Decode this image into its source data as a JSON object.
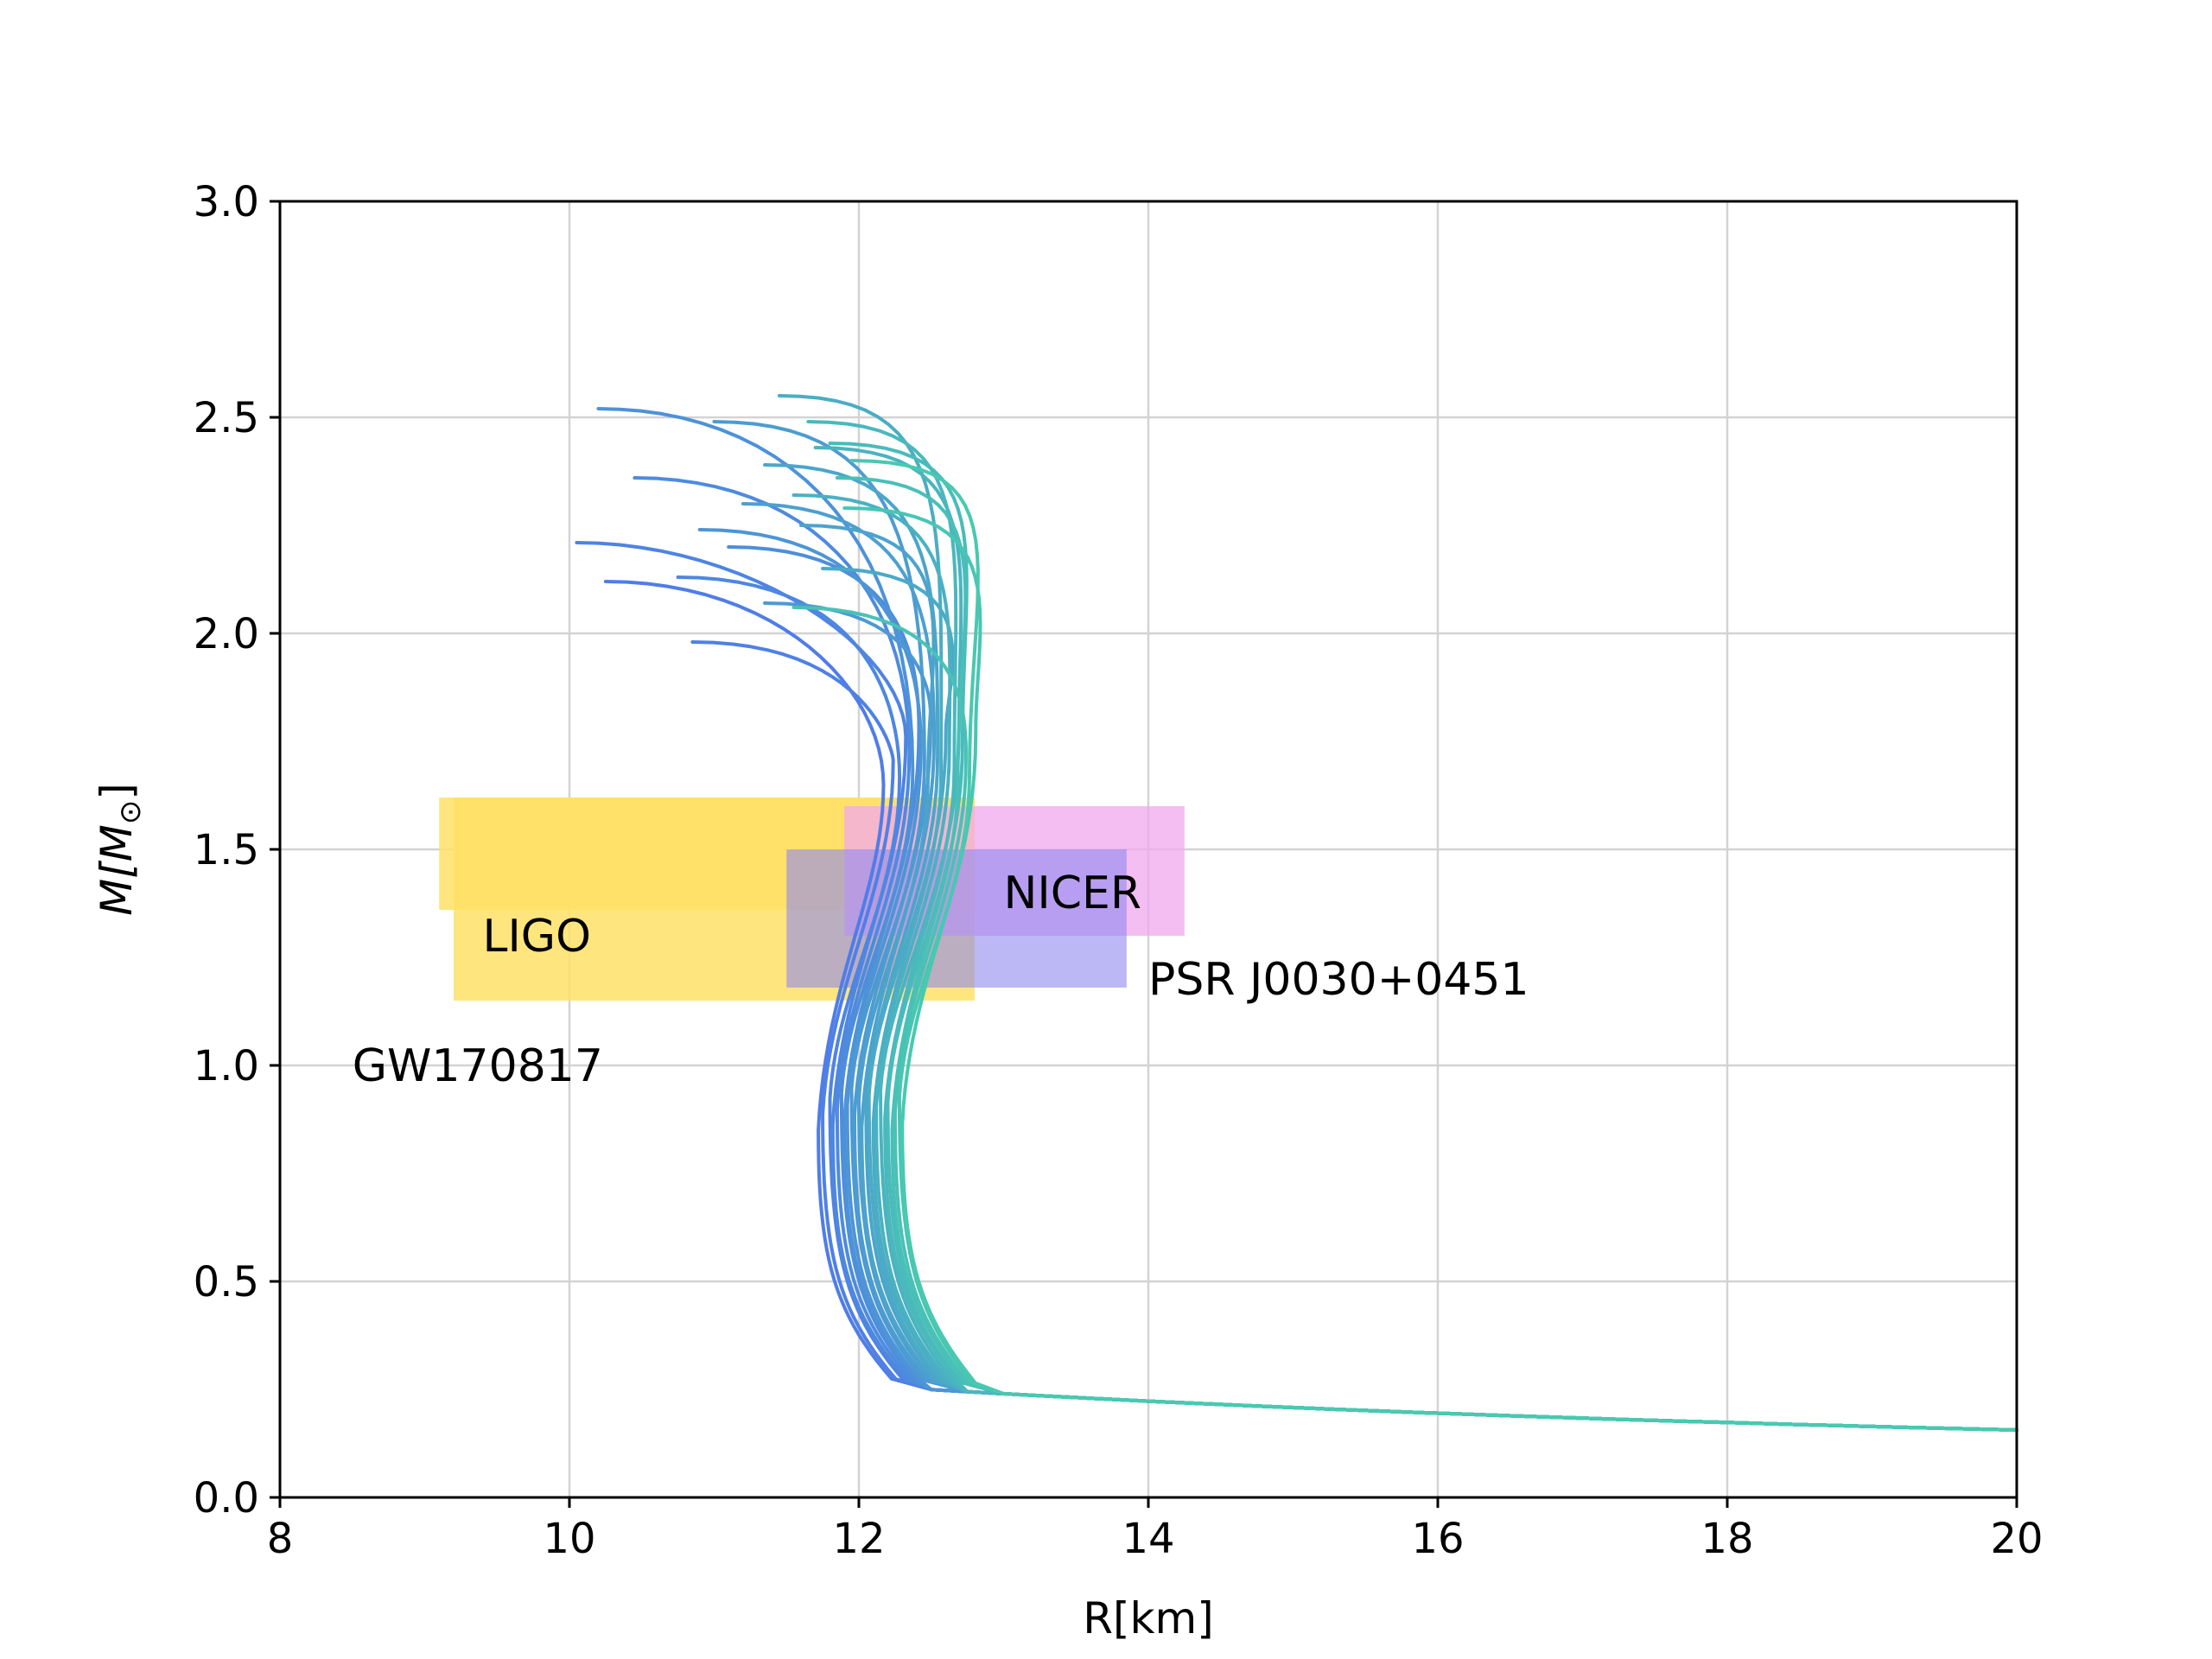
{
  "chart_data": {
    "type": "line",
    "title": "",
    "xlabel": "R[km]",
    "ylabel": "M[M",
    "ylabel_sub": "⊙",
    "ylabel_close": "]",
    "xlim": [
      8,
      20
    ],
    "ylim": [
      0,
      3
    ],
    "xticks": [
      8,
      10,
      12,
      14,
      16,
      18,
      20
    ],
    "yticks": [
      0.0,
      0.5,
      1.0,
      1.5,
      2.0,
      2.5,
      3.0
    ],
    "xtick_labels": [
      "8",
      "10",
      "12",
      "14",
      "16",
      "18",
      "20"
    ],
    "ytick_labels": [
      "0.0",
      "0.5",
      "1.0",
      "1.5",
      "2.0",
      "2.5",
      "3.0"
    ],
    "grid": true,
    "series_color_start": "#4f7de8",
    "series_color_end": "#48c9b0",
    "series": [
      {
        "r_turn": 11.72,
        "r_top": 10.25,
        "m_max": 2.12
      },
      {
        "r_turn": 11.75,
        "r_top": 10.85,
        "m_max": 1.98
      },
      {
        "r_turn": 11.8,
        "r_top": 10.05,
        "m_max": 2.21
      },
      {
        "r_turn": 11.82,
        "r_top": 10.75,
        "m_max": 2.13
      },
      {
        "r_turn": 11.85,
        "r_top": 10.45,
        "m_max": 2.36
      },
      {
        "r_turn": 11.88,
        "r_top": 11.1,
        "m_max": 2.2
      },
      {
        "r_turn": 11.9,
        "r_top": 10.2,
        "m_max": 2.52
      },
      {
        "r_turn": 11.92,
        "r_top": 10.9,
        "m_max": 2.24
      },
      {
        "r_turn": 11.95,
        "r_top": 11.35,
        "m_max": 2.07
      },
      {
        "r_turn": 11.97,
        "r_top": 11.0,
        "m_max": 2.49
      },
      {
        "r_turn": 12.0,
        "r_top": 11.2,
        "m_max": 2.3
      },
      {
        "r_turn": 12.02,
        "r_top": 11.6,
        "m_max": 2.25
      },
      {
        "r_turn": 12.05,
        "r_top": 11.35,
        "m_max": 2.39
      },
      {
        "r_turn": 12.07,
        "r_top": 11.75,
        "m_max": 2.15
      },
      {
        "r_turn": 12.1,
        "r_top": 11.45,
        "m_max": 2.55
      },
      {
        "r_turn": 12.12,
        "r_top": 11.55,
        "m_max": 2.32
      },
      {
        "r_turn": 12.15,
        "r_top": 11.7,
        "m_max": 2.43
      },
      {
        "r_turn": 12.18,
        "r_top": 11.65,
        "m_max": 2.49
      },
      {
        "r_turn": 12.2,
        "r_top": 11.8,
        "m_max": 2.44
      },
      {
        "r_turn": 12.23,
        "r_top": 11.85,
        "m_max": 2.36
      },
      {
        "r_turn": 12.25,
        "r_top": 11.55,
        "m_max": 2.06
      },
      {
        "r_turn": 12.28,
        "r_top": 11.9,
        "m_max": 2.29
      },
      {
        "r_turn": 12.3,
        "r_top": 11.95,
        "m_max": 2.4
      }
    ],
    "regions": [
      {
        "label": "LIGO",
        "x0": 9.1,
        "x1": 12.8,
        "y0": 1.36,
        "y1": 1.62,
        "color": "#ffe066",
        "opacity": 0.85
      },
      {
        "label": "LIGO",
        "x0": 9.2,
        "x1": 12.8,
        "y0": 1.15,
        "y1": 1.62,
        "color": "#ffe066",
        "opacity": 0.85
      },
      {
        "label": "NICER",
        "x0": 11.9,
        "x1": 14.25,
        "y0": 1.3,
        "y1": 1.6,
        "color": "#f0a8ee",
        "opacity": 0.75
      },
      {
        "label": "PSR J0030+0451",
        "x0": 11.5,
        "x1": 13.85,
        "y0": 1.18,
        "y1": 1.5,
        "color": "#8f88ee",
        "opacity": 0.6
      }
    ],
    "annotations": [
      {
        "text": "LIGO",
        "x": 9.4,
        "y": 1.3
      },
      {
        "text": "GW170817",
        "x": 8.5,
        "y": 1.0
      },
      {
        "text": "NICER",
        "x": 13.0,
        "y": 1.4
      },
      {
        "text": "PSR J0030+0451",
        "x": 14.0,
        "y": 1.2
      }
    ]
  }
}
